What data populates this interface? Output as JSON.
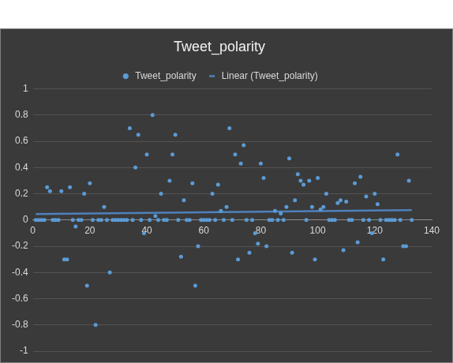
{
  "chart_data": {
    "type": "scatter",
    "title": "Tweet_polarity",
    "x": [
      1,
      2,
      3,
      4,
      5,
      6,
      7,
      8,
      9,
      10,
      11,
      12,
      13,
      14,
      15,
      16,
      17,
      18,
      19,
      20,
      21,
      22,
      23,
      24,
      25,
      26,
      27,
      28,
      29,
      30,
      31,
      32,
      33,
      34,
      35,
      36,
      37,
      38,
      39,
      40,
      41,
      42,
      43,
      44,
      45,
      46,
      47,
      48,
      49,
      50,
      51,
      52,
      53,
      54,
      55,
      56,
      57,
      58,
      59,
      60,
      61,
      62,
      63,
      64,
      65,
      66,
      67,
      68,
      69,
      70,
      71,
      72,
      73,
      74,
      75,
      76,
      77,
      78,
      79,
      80,
      81,
      82,
      83,
      84,
      85,
      86,
      87,
      88,
      89,
      90,
      91,
      92,
      93,
      94,
      95,
      96,
      97,
      98,
      99,
      100,
      101,
      102,
      103,
      104,
      105,
      106,
      107,
      108,
      109,
      110,
      111,
      112,
      113,
      114,
      115,
      116,
      117,
      118,
      119,
      120,
      121,
      122,
      123,
      124,
      125,
      126,
      127,
      128,
      129,
      130,
      131,
      132,
      133
    ],
    "series": [
      {
        "name": "Tweet_polarity",
        "type": "scatter",
        "marker": "circle",
        "color": "#5b9bd5",
        "values": [
          0,
          0,
          0,
          0,
          0.25,
          0.22,
          0,
          0,
          0,
          0.22,
          -0.3,
          -0.3,
          0.25,
          0,
          -0.05,
          0,
          0,
          0.2,
          -0.5,
          0.28,
          0,
          -0.8,
          0,
          0,
          0.1,
          0,
          -0.4,
          0,
          0,
          0,
          0,
          0,
          0,
          0.7,
          0,
          0.4,
          0.65,
          0,
          -0.1,
          0.5,
          0,
          0.8,
          0.03,
          0,
          0.2,
          0,
          0,
          0.3,
          0.5,
          0.65,
          0,
          -0.28,
          0.15,
          0,
          0,
          0.28,
          -0.5,
          -0.2,
          0,
          0,
          0,
          0,
          0.2,
          0,
          0.27,
          0.07,
          0,
          0.1,
          0.7,
          0,
          0.5,
          -0.3,
          0.43,
          0.57,
          0,
          -0.25,
          0,
          -0.1,
          -0.18,
          0.43,
          0.32,
          -0.2,
          0,
          0,
          0.07,
          0,
          0.05,
          0,
          0.1,
          0.47,
          -0.25,
          0.15,
          0.35,
          0.3,
          0.27,
          0,
          0.3,
          0.1,
          -0.3,
          0.32,
          0.08,
          0.1,
          0.2,
          0,
          0,
          0,
          0.13,
          0.15,
          -0.23,
          0.14,
          0,
          0,
          0.28,
          -0.17,
          0.33,
          0,
          0.18,
          0,
          -0.1,
          0.2,
          0.12,
          0,
          -0.3,
          0,
          0,
          0,
          0,
          0.5,
          0,
          -0.2,
          -0.2,
          0.3,
          0
        ]
      },
      {
        "name": "Linear (Tweet_polarity)",
        "type": "line",
        "line_style": "solid",
        "color": "#4f81bd",
        "x": [
          1,
          133
        ],
        "values": [
          0.045,
          0.075
        ]
      }
    ],
    "xlim": [
      0,
      140
    ],
    "xticks": [
      0,
      20,
      40,
      60,
      80,
      100,
      120,
      140
    ],
    "ylim": [
      -1,
      1
    ],
    "yticks": [
      -1,
      -0.8,
      -0.6,
      -0.4,
      -0.2,
      0,
      0.2,
      0.4,
      0.6,
      0.8,
      1
    ],
    "grid": true,
    "legend": "top"
  }
}
